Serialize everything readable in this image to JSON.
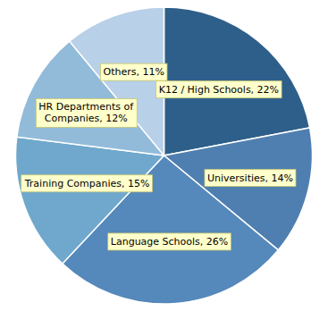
{
  "chart_data": {
    "type": "pie",
    "categories": [
      "K12 / High Schools, 22%",
      "Universities, 14%",
      "Language Schools, 26%",
      "Training Companies, 15%",
      "HR Departments of\nCompanies, 12%",
      "Others, 11%"
    ],
    "values": [
      22,
      14,
      26,
      15,
      12,
      11
    ],
    "colors": [
      "#2E5F8A",
      "#4F7FB0",
      "#5588BB",
      "#6FA8CC",
      "#92BBDA",
      "#B8D0E8"
    ]
  }
}
